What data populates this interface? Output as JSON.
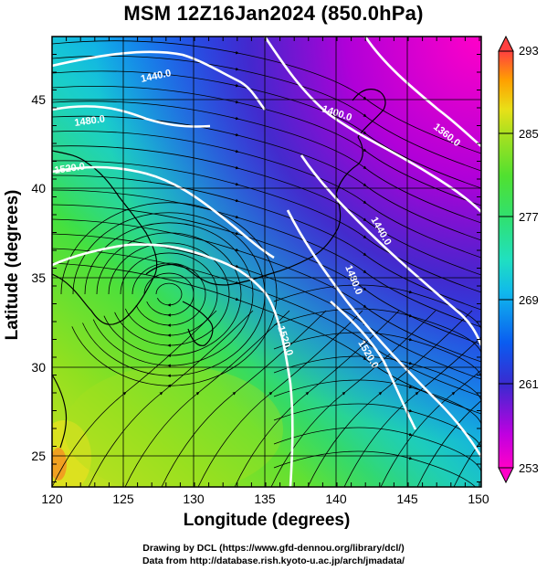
{
  "title": "MSM 12Z16Jan2024 (850.0hPa)",
  "axes": {
    "xlabel": "Longitude (degrees)",
    "ylabel": "Latitude  (degrees)",
    "x_ticks": [
      "120",
      "125",
      "130",
      "135",
      "140",
      "145",
      "150"
    ],
    "y_ticks": [
      "25",
      "30",
      "35",
      "40",
      "45"
    ],
    "xlim": [
      120,
      150
    ],
    "ylim": [
      22.4,
      47.6
    ]
  },
  "colorbar": {
    "ticks": [
      "293",
      "285",
      "277",
      "269",
      "261",
      "253"
    ],
    "range": [
      253,
      293
    ],
    "colors": [
      "#ff00c8",
      "#a000e0",
      "#2030d0",
      "#0070ff",
      "#10c8e6",
      "#30e0a0",
      "#40e040",
      "#90e020",
      "#d8e818",
      "#ffa000",
      "#ff6020",
      "#ff4040"
    ]
  },
  "contours": {
    "labels": [
      "1440.0",
      "1480.0",
      "1520.0",
      "1400.0",
      "1360.0",
      "1440.0",
      "1480.0",
      "1520.0",
      "1520.0"
    ]
  },
  "credits": {
    "line1": "Drawing by DCL (https://www.gfd-dennou.org/library/dcl/)",
    "line2": "Data from http://database.rish.kyoto-u.ac.jp/arch/jmadata/"
  }
}
